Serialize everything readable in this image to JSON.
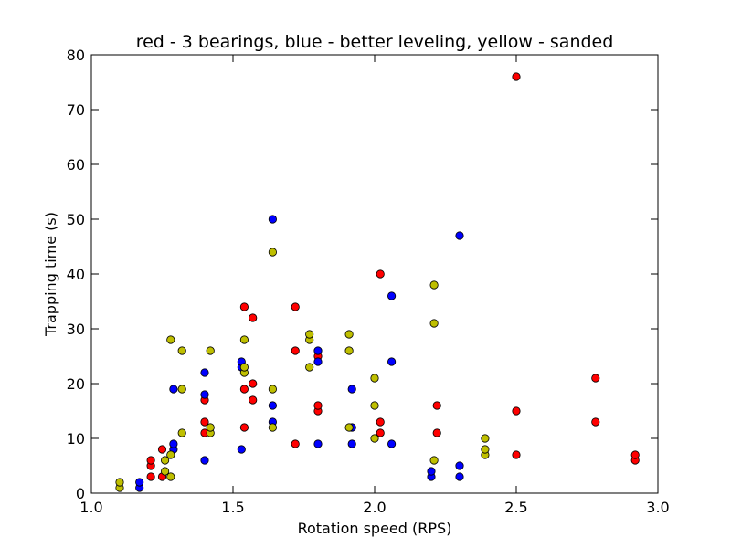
{
  "chart_data": {
    "type": "scatter",
    "title": "red - 3 bearings, blue - better leveling, yellow - sanded",
    "xlabel": "Rotation speed (RPS)",
    "ylabel": "Trapping time (s)",
    "xlim": [
      1.0,
      3.0
    ],
    "ylim": [
      0,
      80
    ],
    "xticks": [
      "1.0",
      "1.5",
      "2.0",
      "2.5",
      "3.0"
    ],
    "yticks": [
      "0",
      "10",
      "20",
      "30",
      "40",
      "50",
      "60",
      "70",
      "80"
    ],
    "grid": false,
    "series": [
      {
        "color": "#ff0000",
        "points": [
          [
            1.21,
            3
          ],
          [
            1.21,
            5
          ],
          [
            1.21,
            6
          ],
          [
            1.25,
            3
          ],
          [
            1.25,
            8
          ],
          [
            1.4,
            11
          ],
          [
            1.4,
            13
          ],
          [
            1.4,
            17
          ],
          [
            1.54,
            12
          ],
          [
            1.54,
            19
          ],
          [
            1.54,
            34
          ],
          [
            1.57,
            17
          ],
          [
            1.57,
            20
          ],
          [
            1.57,
            32
          ],
          [
            1.72,
            9
          ],
          [
            1.72,
            26
          ],
          [
            1.72,
            34
          ],
          [
            1.8,
            15
          ],
          [
            1.8,
            16
          ],
          [
            1.8,
            25
          ],
          [
            2.02,
            11
          ],
          [
            2.02,
            13
          ],
          [
            2.02,
            40
          ],
          [
            2.22,
            11
          ],
          [
            2.22,
            16
          ],
          [
            2.5,
            7
          ],
          [
            2.5,
            15
          ],
          [
            2.5,
            76
          ],
          [
            2.78,
            13
          ],
          [
            2.78,
            21
          ],
          [
            2.92,
            6
          ],
          [
            2.92,
            7
          ]
        ]
      },
      {
        "color": "#0000ff",
        "points": [
          [
            1.17,
            1
          ],
          [
            1.17,
            2
          ],
          [
            1.29,
            8
          ],
          [
            1.29,
            9
          ],
          [
            1.29,
            19
          ],
          [
            1.4,
            6
          ],
          [
            1.4,
            18
          ],
          [
            1.4,
            22
          ],
          [
            1.53,
            8
          ],
          [
            1.53,
            23
          ],
          [
            1.53,
            24
          ],
          [
            1.64,
            13
          ],
          [
            1.64,
            16
          ],
          [
            1.64,
            50
          ],
          [
            1.8,
            9
          ],
          [
            1.8,
            24
          ],
          [
            1.8,
            26
          ],
          [
            1.92,
            9
          ],
          [
            1.92,
            12
          ],
          [
            1.92,
            19
          ],
          [
            2.06,
            9
          ],
          [
            2.06,
            24
          ],
          [
            2.06,
            36
          ],
          [
            2.2,
            3
          ],
          [
            2.2,
            4
          ],
          [
            2.3,
            3
          ],
          [
            2.3,
            5
          ],
          [
            2.3,
            47
          ]
        ]
      },
      {
        "color": "#bfbf00",
        "points": [
          [
            1.1,
            1
          ],
          [
            1.1,
            2
          ],
          [
            1.26,
            4
          ],
          [
            1.26,
            6
          ],
          [
            1.28,
            3
          ],
          [
            1.28,
            7
          ],
          [
            1.28,
            28
          ],
          [
            1.32,
            11
          ],
          [
            1.32,
            19
          ],
          [
            1.32,
            26
          ],
          [
            1.42,
            11
          ],
          [
            1.42,
            12
          ],
          [
            1.42,
            26
          ],
          [
            1.54,
            22
          ],
          [
            1.54,
            23
          ],
          [
            1.54,
            28
          ],
          [
            1.64,
            12
          ],
          [
            1.64,
            19
          ],
          [
            1.64,
            44
          ],
          [
            1.77,
            23
          ],
          [
            1.77,
            28
          ],
          [
            1.77,
            29
          ],
          [
            1.91,
            12
          ],
          [
            1.91,
            26
          ],
          [
            1.91,
            29
          ],
          [
            2.0,
            10
          ],
          [
            2.0,
            16
          ],
          [
            2.0,
            21
          ],
          [
            2.21,
            6
          ],
          [
            2.21,
            31
          ],
          [
            2.21,
            38
          ],
          [
            2.39,
            7
          ],
          [
            2.39,
            8
          ],
          [
            2.39,
            10
          ]
        ]
      }
    ]
  }
}
